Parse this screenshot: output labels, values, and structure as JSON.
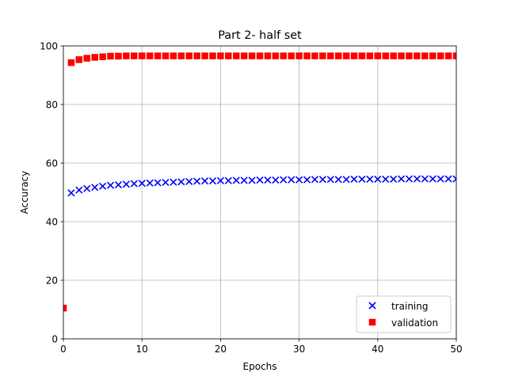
{
  "chart_data": {
    "type": "scatter",
    "title": "Part 2- half set",
    "xlabel": "Epochs",
    "ylabel": "Accuracy",
    "xlim": [
      0,
      50
    ],
    "ylim": [
      0,
      100
    ],
    "xticks": [
      0,
      10,
      20,
      30,
      40,
      50
    ],
    "yticks": [
      0,
      20,
      40,
      60,
      80,
      100
    ],
    "grid": true,
    "legend_position": "lower-right",
    "series": [
      {
        "name": "training",
        "marker": "x",
        "color": "#0000ff",
        "x": [
          1,
          2,
          3,
          4,
          5,
          6,
          7,
          8,
          9,
          10,
          11,
          12,
          13,
          14,
          15,
          16,
          17,
          18,
          19,
          20,
          21,
          22,
          23,
          24,
          25,
          26,
          27,
          28,
          29,
          30,
          31,
          32,
          33,
          34,
          35,
          36,
          37,
          38,
          39,
          40,
          41,
          42,
          43,
          44,
          45,
          46,
          47,
          48,
          49,
          50
        ],
        "values": [
          49.8,
          50.8,
          51.3,
          51.7,
          52.1,
          52.4,
          52.6,
          52.8,
          53.0,
          53.1,
          53.2,
          53.3,
          53.4,
          53.5,
          53.6,
          53.7,
          53.8,
          53.9,
          53.9,
          54.0,
          54.0,
          54.1,
          54.1,
          54.1,
          54.2,
          54.2,
          54.2,
          54.3,
          54.3,
          54.3,
          54.3,
          54.4,
          54.4,
          54.4,
          54.4,
          54.4,
          54.5,
          54.5,
          54.5,
          54.5,
          54.5,
          54.5,
          54.6,
          54.6,
          54.6,
          54.6,
          54.6,
          54.6,
          54.6,
          54.6
        ]
      },
      {
        "name": "validation",
        "marker": "s",
        "color": "#ff0000",
        "x": [
          0,
          1,
          2,
          3,
          4,
          5,
          6,
          7,
          8,
          9,
          10,
          11,
          12,
          13,
          14,
          15,
          16,
          17,
          18,
          19,
          20,
          21,
          22,
          23,
          24,
          25,
          26,
          27,
          28,
          29,
          30,
          31,
          32,
          33,
          34,
          35,
          36,
          37,
          38,
          39,
          40,
          41,
          42,
          43,
          44,
          45,
          46,
          47,
          48,
          49,
          50
        ],
        "values": [
          10.5,
          94.3,
          95.3,
          95.8,
          96.1,
          96.3,
          96.5,
          96.5,
          96.6,
          96.6,
          96.6,
          96.6,
          96.6,
          96.6,
          96.6,
          96.6,
          96.6,
          96.6,
          96.6,
          96.6,
          96.6,
          96.6,
          96.6,
          96.6,
          96.6,
          96.6,
          96.6,
          96.6,
          96.6,
          96.6,
          96.6,
          96.6,
          96.6,
          96.6,
          96.6,
          96.6,
          96.6,
          96.6,
          96.6,
          96.6,
          96.6,
          96.6,
          96.6,
          96.6,
          96.6,
          96.6,
          96.6,
          96.6,
          96.6,
          96.6,
          96.6
        ]
      }
    ]
  }
}
